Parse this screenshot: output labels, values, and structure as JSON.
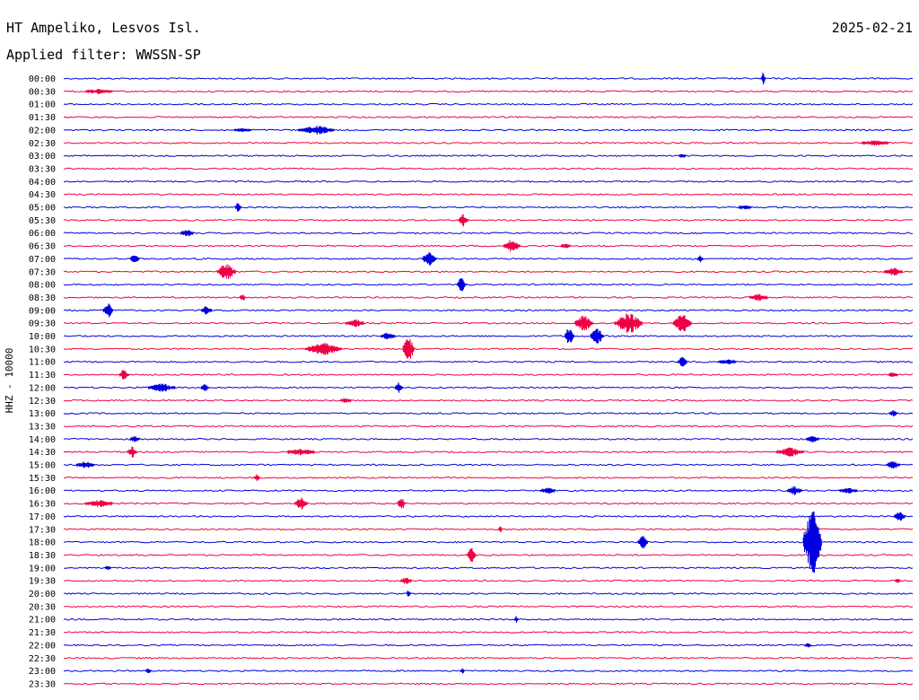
{
  "header": {
    "station": "HT Ampeliko, Lesvos Isl.",
    "date": "2025-02-21",
    "filter": "Applied filter: WWSSN-SP"
  },
  "chart_data": {
    "type": "line",
    "title": "HT Ampeliko, Lesvos Isl.",
    "ylabel": "HHZ - 10000",
    "colors": {
      "even_rows": "#0000dd",
      "odd_rows": "#ee0044"
    },
    "rows": [
      "00:00",
      "00:30",
      "01:00",
      "01:30",
      "02:00",
      "02:30",
      "03:00",
      "03:30",
      "04:00",
      "04:30",
      "05:00",
      "05:30",
      "06:00",
      "06:30",
      "07:00",
      "07:30",
      "08:00",
      "08:30",
      "09:00",
      "09:30",
      "10:00",
      "10:30",
      "11:00",
      "11:30",
      "12:00",
      "12:30",
      "13:00",
      "13:30",
      "14:00",
      "14:30",
      "15:00",
      "15:30",
      "16:00",
      "16:30",
      "17:00",
      "17:30",
      "18:00",
      "18:30",
      "19:00",
      "19:30",
      "20:00",
      "20:30",
      "21:00",
      "21:30",
      "22:00",
      "22:30",
      "23:00",
      "23:30"
    ]
  }
}
